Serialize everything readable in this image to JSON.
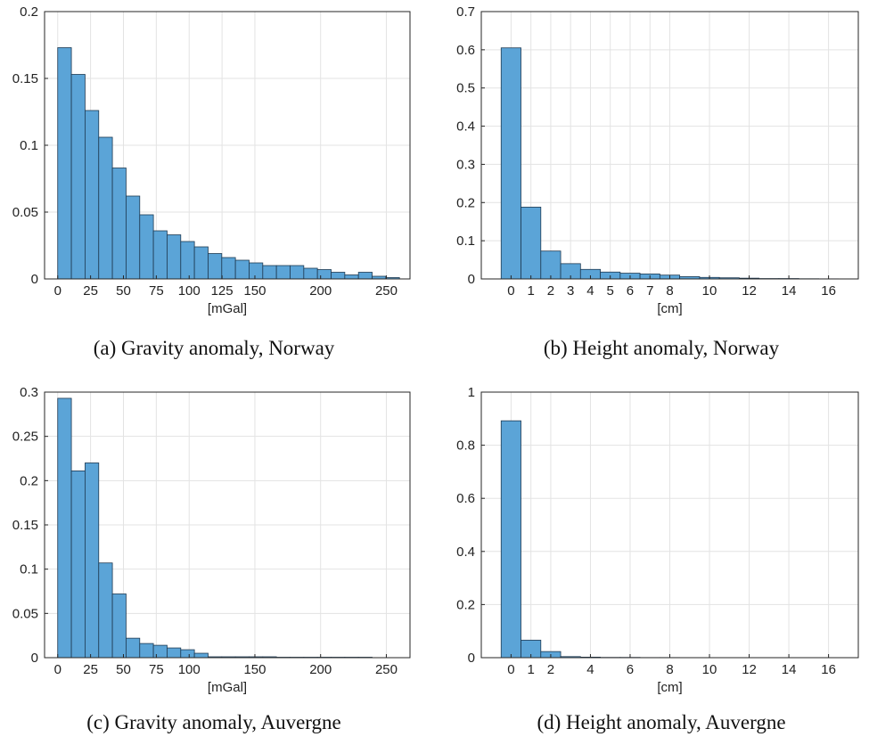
{
  "colors": {
    "bar_fill": "#5ba4d7",
    "bar_edge": "#1f3a52",
    "grid": "#e3e3e3",
    "axis": "#262626",
    "background": "#ffffff"
  },
  "chart_data": [
    {
      "type": "bar",
      "id": "a",
      "caption": "(a) Gravity anomaly, Norway",
      "xlabel": "[mGal]",
      "ylabel": "",
      "xlim": [
        -10,
        268
      ],
      "ylim": [
        0,
        0.2
      ],
      "xticks": [
        0,
        25,
        50,
        75,
        100,
        125,
        150,
        200,
        250
      ],
      "xtick_labels": [
        "0",
        "25",
        "50",
        "75",
        "100",
        "125",
        "150",
        "200",
        "250"
      ],
      "yticks": [
        0,
        0.05,
        0.1,
        0.15,
        0.2
      ],
      "ytick_labels": [
        "0",
        "0.05",
        "0.1",
        "0.15",
        "0.2"
      ],
      "grid": true,
      "bin_edges": [
        0,
        10.4,
        20.8,
        31.2,
        41.6,
        52,
        62.4,
        72.8,
        83.2,
        93.6,
        104,
        114.4,
        124.8,
        135.2,
        145.6,
        156,
        166.4,
        176.8,
        187.2,
        197.6,
        208,
        218.4,
        228.8,
        239.2,
        249.6,
        260
      ],
      "values": [
        0.173,
        0.153,
        0.126,
        0.106,
        0.083,
        0.062,
        0.048,
        0.036,
        0.033,
        0.028,
        0.024,
        0.019,
        0.016,
        0.014,
        0.012,
        0.01,
        0.01,
        0.01,
        0.008,
        0.007,
        0.005,
        0.003,
        0.005,
        0.002,
        0.001
      ]
    },
    {
      "type": "bar",
      "id": "b",
      "caption": "(b) Height anomaly, Norway",
      "xlabel": "[cm]",
      "ylabel": "",
      "xlim": [
        -1.5,
        17.5
      ],
      "ylim": [
        0,
        0.7
      ],
      "xticks": [
        0,
        1,
        2,
        3,
        4,
        5,
        6,
        7,
        8,
        10,
        12,
        14,
        16
      ],
      "xtick_labels": [
        "0",
        "1",
        "2",
        "3",
        "4",
        "5",
        "6",
        "7",
        "8",
        "10",
        "12",
        "14",
        "16"
      ],
      "yticks": [
        0,
        0.1,
        0.2,
        0.3,
        0.4,
        0.5,
        0.6,
        0.7
      ],
      "ytick_labels": [
        "0",
        "0.1",
        "0.2",
        "0.3",
        "0.4",
        "0.5",
        "0.6",
        "0.7"
      ],
      "grid": true,
      "bin_edges": [
        -0.5,
        0.5,
        1.5,
        2.5,
        3.5,
        4.5,
        5.5,
        6.5,
        7.5,
        8.5,
        9.5,
        10.5,
        11.5,
        12.5,
        13.5,
        14.5,
        15.5,
        16.5
      ],
      "values": [
        0.605,
        0.188,
        0.073,
        0.04,
        0.025,
        0.018,
        0.015,
        0.013,
        0.01,
        0.006,
        0.004,
        0.003,
        0.002,
        0.001,
        0.001,
        0.0005,
        0.0003
      ]
    },
    {
      "type": "bar",
      "id": "c",
      "caption": "(c) Gravity anomaly, Auvergne",
      "xlabel": "[mGal]",
      "ylabel": "",
      "xlim": [
        -10,
        268
      ],
      "ylim": [
        0,
        0.3
      ],
      "xticks": [
        0,
        25,
        50,
        75,
        100,
        150,
        200,
        250
      ],
      "xtick_labels": [
        "0",
        "25",
        "50",
        "75",
        "100",
        "150",
        "200",
        "250"
      ],
      "yticks": [
        0,
        0.05,
        0.1,
        0.15,
        0.2,
        0.25,
        0.3
      ],
      "ytick_labels": [
        "0",
        "0.05",
        "0.1",
        "0.15",
        "0.2",
        "0.25",
        "0.3"
      ],
      "grid": true,
      "bin_edges": [
        0,
        10.4,
        20.8,
        31.2,
        41.6,
        52,
        62.4,
        72.8,
        83.2,
        93.6,
        104,
        114.4,
        124.8,
        135.2,
        145.6,
        156,
        166.4,
        176.8,
        187.2,
        197.6,
        208,
        218.4,
        228.8,
        239.2
      ],
      "values": [
        0.293,
        0.211,
        0.22,
        0.107,
        0.072,
        0.022,
        0.016,
        0.014,
        0.011,
        0.009,
        0.005,
        0.001,
        0.001,
        0.001,
        0.001,
        0.001,
        0.0005,
        0.0005,
        0.0005,
        0.0005,
        0.0005,
        0.0005,
        0.0005
      ]
    },
    {
      "type": "bar",
      "id": "d",
      "caption": "(d) Height anomaly, Auvergne",
      "xlabel": "[cm]",
      "ylabel": "",
      "xlim": [
        -1.5,
        17.5
      ],
      "ylim": [
        0,
        1
      ],
      "xticks": [
        0,
        1,
        2,
        4,
        6,
        8,
        10,
        12,
        14,
        16
      ],
      "xtick_labels": [
        "0",
        "1",
        "2",
        "4",
        "6",
        "8",
        "10",
        "12",
        "14",
        "16"
      ],
      "yticks": [
        0,
        0.2,
        0.4,
        0.6,
        0.8,
        1
      ],
      "ytick_labels": [
        "0",
        "0.2",
        "0.4",
        "0.6",
        "0.8",
        "1"
      ],
      "grid": true,
      "bin_edges": [
        -0.5,
        0.5,
        1.5,
        2.5,
        3.5,
        4.5,
        5.5,
        6.5,
        7.5,
        8.5,
        9.5
      ],
      "values": [
        0.892,
        0.066,
        0.023,
        0.004,
        0.002,
        0.001,
        0.001,
        0.0005,
        0.0005,
        0.0003
      ]
    }
  ]
}
